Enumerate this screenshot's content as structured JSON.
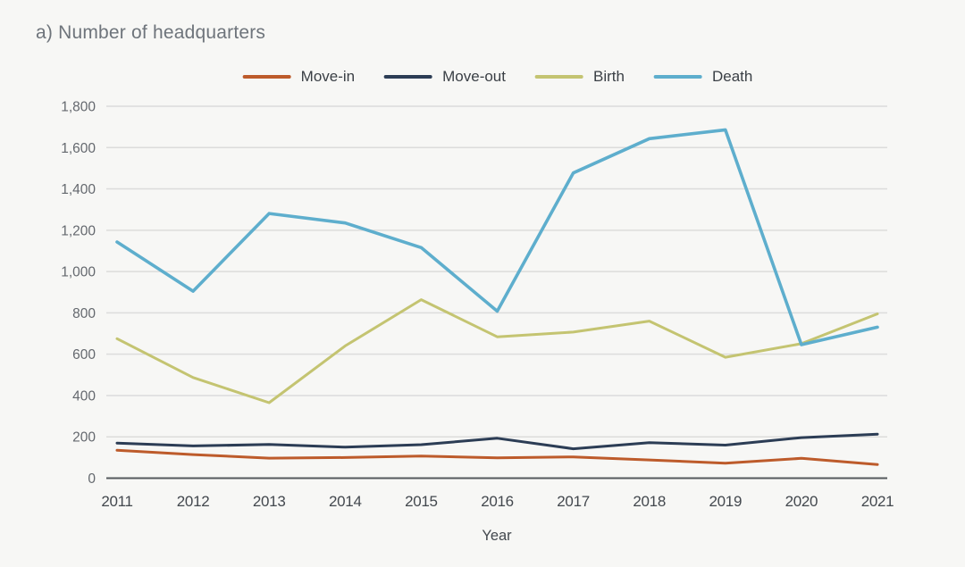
{
  "chart_data": {
    "type": "line",
    "title": "a) Number of headquarters",
    "xlabel": "Year",
    "ylabel": "",
    "x_categories": [
      "2011",
      "2012",
      "2013",
      "2014",
      "2015",
      "2016",
      "2017",
      "2018",
      "2019",
      "2020",
      "2021"
    ],
    "ylim": [
      0,
      1800
    ],
    "ytick_interval": 200,
    "ytick_labels": [
      "0",
      "200",
      "400",
      "600",
      "800",
      "1,000",
      "1,200",
      "1,400",
      "1,600",
      "1,800"
    ],
    "grid": true,
    "legend_position": "top-center",
    "series": [
      {
        "name": "Move-in",
        "color": "#bd5b2b",
        "values": [
          135,
          114,
          97,
          100,
          107,
          98,
          103,
          88,
          72,
          96,
          66
        ]
      },
      {
        "name": "Move-out",
        "color": "#2c3d55",
        "values": [
          170,
          156,
          163,
          150,
          162,
          193,
          142,
          172,
          160,
          196,
          213
        ]
      },
      {
        "name": "Birth",
        "color": "#c4c471",
        "values": [
          675,
          487,
          365,
          640,
          864,
          684,
          707,
          760,
          585,
          651,
          795
        ]
      },
      {
        "name": "Death",
        "color": "#5eaecd",
        "values": [
          1143,
          905,
          1281,
          1235,
          1116,
          808,
          1477,
          1643,
          1686,
          646,
          731
        ]
      }
    ]
  },
  "colors": {
    "background": "#f7f7f5",
    "gridline": "#dcdcdb",
    "axis_line": "#54585c",
    "title_text": "#6e747b",
    "ytick_text": "#64686e",
    "xtick_text": "#43484e",
    "legend_text": "#3a3f45"
  }
}
